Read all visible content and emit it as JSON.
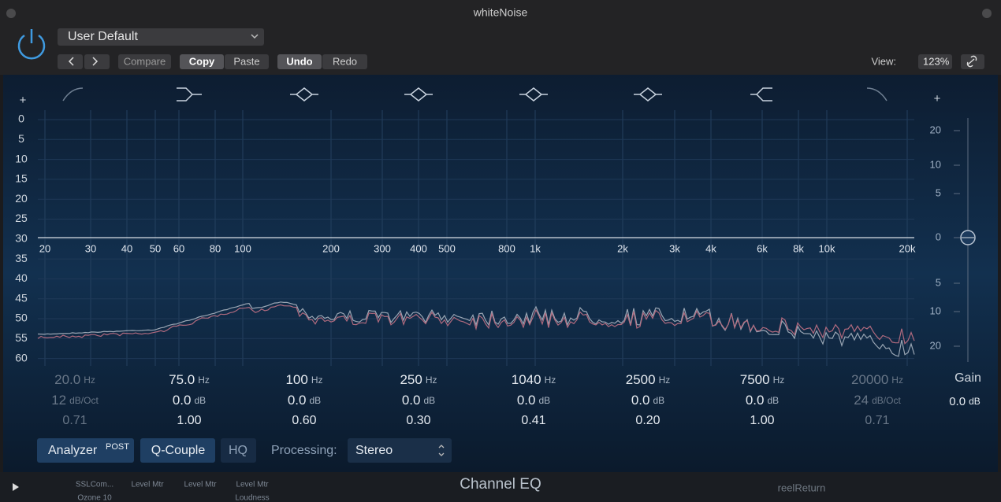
{
  "window": {
    "title": "whiteNoise"
  },
  "header": {
    "preset": "User Default",
    "buttons": [
      "Compare",
      "Copy",
      "Paste",
      "Undo",
      "Redo"
    ],
    "view_label": "View:",
    "view_value": "123%"
  },
  "left_scale": {
    "plus": "+",
    "labels": [
      "0",
      "5",
      "10",
      "15",
      "20",
      "25",
      "30",
      "35",
      "40",
      "45",
      "50",
      "55",
      "60"
    ]
  },
  "right_scale": {
    "plus": "+",
    "labels": [
      "20",
      "10",
      "5",
      "0",
      "5",
      "10",
      "20"
    ]
  },
  "freq_labels": [
    "20",
    "30",
    "40",
    "50",
    "60",
    "80",
    "100",
    "200",
    "300",
    "400",
    "500",
    "800",
    "1k",
    "2k",
    "3k",
    "4k",
    "6k",
    "8k",
    "10k",
    "20k"
  ],
  "bands": [
    {
      "freq": "20.0",
      "freq_unit": "Hz",
      "gain": "12",
      "gain_unit": "dB/Oct",
      "q": "0.71"
    },
    {
      "freq": "75.0",
      "freq_unit": "Hz",
      "gain": "0.0",
      "gain_unit": "dB",
      "q": "1.00"
    },
    {
      "freq": "100",
      "freq_unit": "Hz",
      "gain": "0.0",
      "gain_unit": "dB",
      "q": "0.60"
    },
    {
      "freq": "250",
      "freq_unit": "Hz",
      "gain": "0.0",
      "gain_unit": "dB",
      "q": "0.30"
    },
    {
      "freq": "1040",
      "freq_unit": "Hz",
      "gain": "0.0",
      "gain_unit": "dB",
      "q": "0.41"
    },
    {
      "freq": "2500",
      "freq_unit": "Hz",
      "gain": "0.0",
      "gain_unit": "dB",
      "q": "0.20"
    },
    {
      "freq": "7500",
      "freq_unit": "Hz",
      "gain": "0.0",
      "gain_unit": "dB",
      "q": "1.00"
    },
    {
      "freq": "20000",
      "freq_unit": "Hz",
      "gain": "24",
      "gain_unit": "dB/Oct",
      "q": "0.71"
    }
  ],
  "gain": {
    "label": "Gain",
    "value": "0.0",
    "unit": "dB"
  },
  "footer": {
    "analyzer": "Analyzer",
    "analyzer_mode": "POST",
    "q_couple": "Q-Couple",
    "hq": "HQ",
    "processing_label": "Processing:",
    "processing_value": "Stereo",
    "plugin_name": "Channel EQ"
  },
  "background": {
    "slots": [
      "SSLCom...",
      "Level Mtr",
      "Level Mtr",
      "Level Mtr",
      "Ozone 10",
      "Loudness"
    ],
    "track": "reelReturn"
  }
}
